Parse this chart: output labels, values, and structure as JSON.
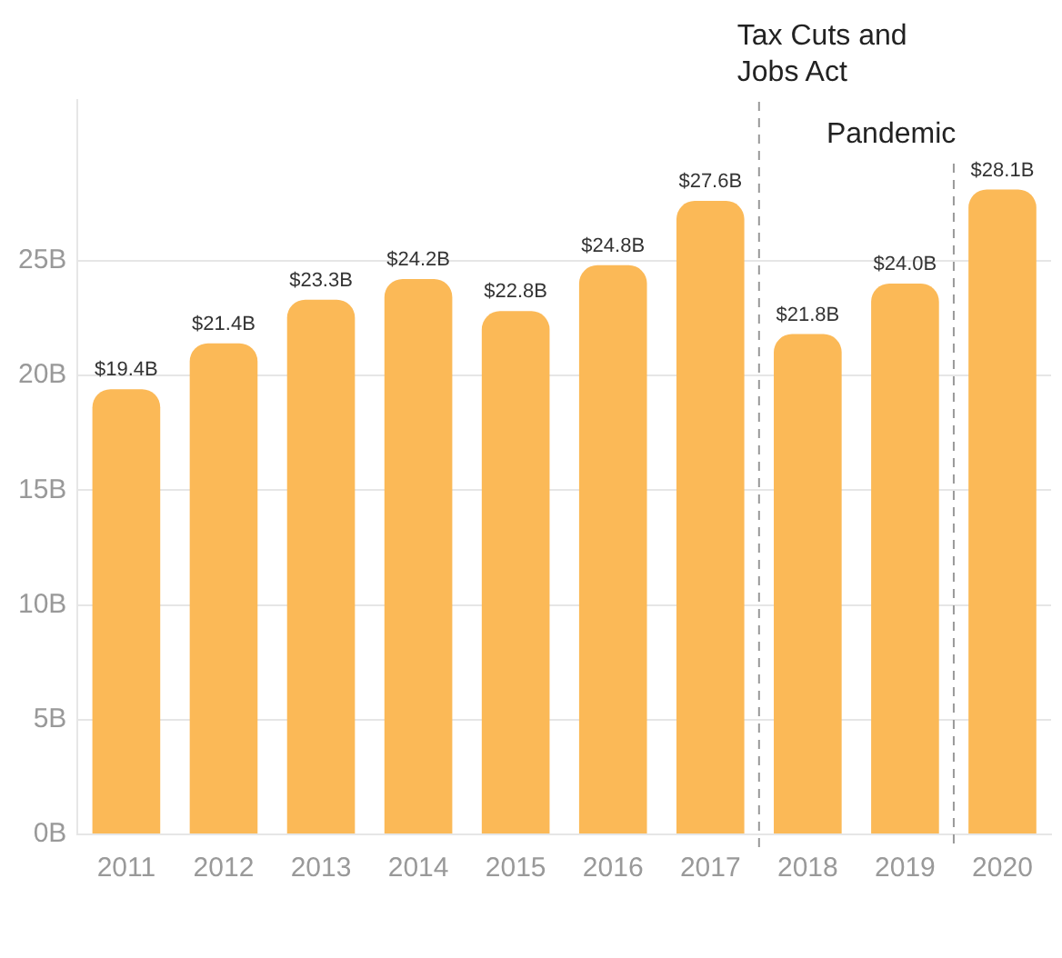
{
  "chart_data": {
    "type": "bar",
    "x": [
      2011,
      2012,
      2013,
      2014,
      2015,
      2016,
      2017,
      2018,
      2019,
      2020
    ],
    "values": [
      19.4,
      21.4,
      23.3,
      24.2,
      22.8,
      24.8,
      27.6,
      21.8,
      24.0,
      28.1
    ],
    "value_labels": [
      "$19.4B",
      "$21.4B",
      "$23.3B",
      "$24.2B",
      "$22.8B",
      "$24.8B",
      "$27.6B",
      "$21.8B",
      "$24.0B",
      "$28.1B"
    ],
    "color": "#fbb957",
    "xlim": [
      2010.5,
      2020.5
    ],
    "xticks": [
      2011,
      2012,
      2013,
      2014,
      2015,
      2016,
      2017,
      2018,
      2019,
      2020
    ],
    "ylim": [
      0,
      32
    ],
    "yticks": [
      {
        "value": 0,
        "label": "0B"
      },
      {
        "value": 5,
        "label": "5B"
      },
      {
        "value": 10,
        "label": "10B"
      },
      {
        "value": 15,
        "label": "15B"
      },
      {
        "value": 20,
        "label": "20B"
      },
      {
        "value": 25,
        "label": "25B"
      }
    ],
    "grid": "y",
    "legend": false,
    "ref_lines": [
      {
        "axis": "x",
        "value": 2017.5,
        "label": "Tax Cuts and Jobs Act",
        "color": "#999999",
        "line_style": "dashed"
      },
      {
        "axis": "x",
        "value": 2019.5,
        "label": "Pandemic",
        "color": "#999999",
        "line_style": "dashed"
      }
    ]
  }
}
